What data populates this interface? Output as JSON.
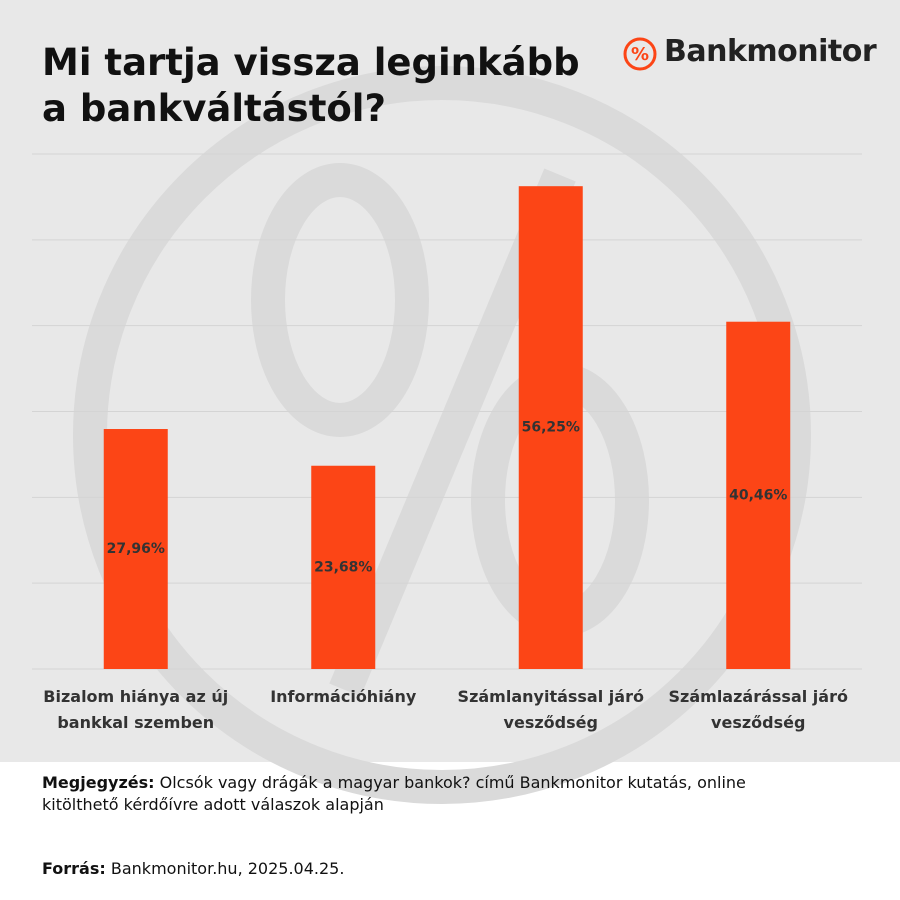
{
  "brand": "Bankmonitor",
  "chart_data": {
    "type": "bar",
    "title": "Mi tartja vissza leginkább a bankváltástól?",
    "categories": [
      "Bizalom hiánya az új bankkal szemben",
      "Információhiány",
      "Számlanyitással járó vesződség",
      "Számlazárással járó vesződség"
    ],
    "values": [
      27.96,
      23.68,
      56.25,
      40.46
    ],
    "value_labels": [
      "27,96%",
      "23,68%",
      "56,25%",
      "40,46%"
    ],
    "color": "#fc4516",
    "ylim": [
      0,
      60
    ],
    "yticks": [
      0,
      10,
      20,
      30,
      40,
      50,
      60
    ],
    "grid": true
  },
  "note": {
    "label": "Megjegyzés:",
    "text": "Olcsók vagy drágák a magyar bankok? című Bankmonitor kutatás, online kitölthető kérdőívre adott válaszok alapján"
  },
  "source": {
    "label": "Forrás:",
    "text": "Bankmonitor.hu, 2025.04.25."
  }
}
